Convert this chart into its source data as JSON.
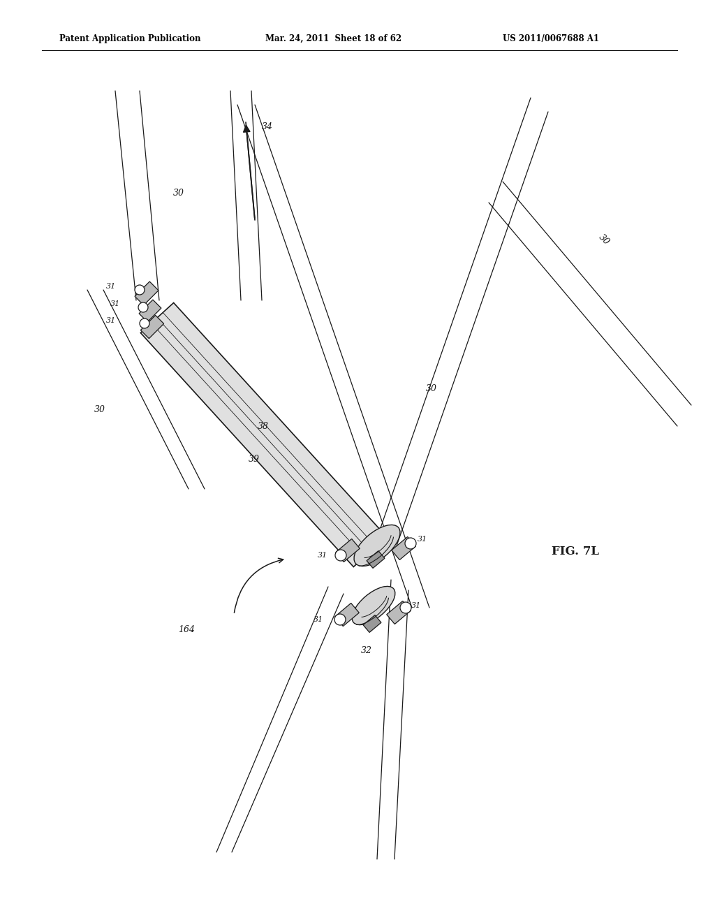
{
  "bg_color": "#ffffff",
  "header_left": "Patent Application Publication",
  "header_mid": "Mar. 24, 2011  Sheet 18 of 62",
  "header_right": "US 2011/0067688 A1",
  "fig_label": "FIG. 7L",
  "lc": "#1a1a1a"
}
